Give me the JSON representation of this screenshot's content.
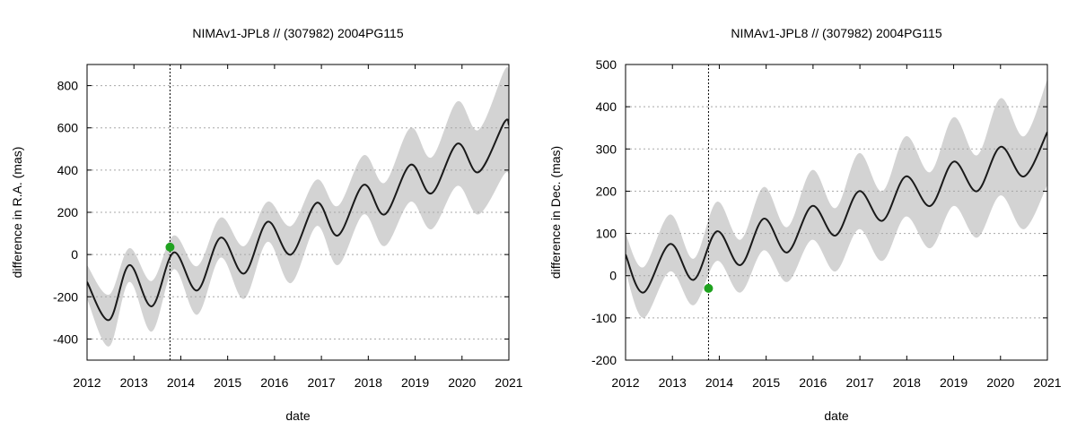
{
  "chart_data": [
    {
      "type": "line",
      "title": "NIMAv1-JPL8 // (307982) 2004PG115",
      "xlabel": "date",
      "ylabel": "difference in R.A. (mas)",
      "xlim": [
        2012,
        2021
      ],
      "ylim": [
        -500,
        900
      ],
      "xticks": [
        2012,
        2013,
        2014,
        2015,
        2016,
        2017,
        2018,
        2019,
        2020,
        2021
      ],
      "yticks": [
        -400,
        -200,
        0,
        200,
        400,
        600,
        800
      ],
      "grid": "horizontal-dotted",
      "vline_x": 2013.77,
      "series": [
        {
          "name": "difference",
          "style": "line",
          "color": "#1a1a1a",
          "x": [
            2012.0,
            2012.47,
            2012.9,
            2013.38,
            2013.85,
            2014.35,
            2014.85,
            2015.35,
            2015.85,
            2016.35,
            2016.9,
            2017.35,
            2017.9,
            2018.35,
            2018.9,
            2019.35,
            2019.9,
            2020.35,
            2020.9,
            2021.0
          ],
          "y": [
            -130,
            -310,
            -50,
            -245,
            10,
            -170,
            80,
            -90,
            155,
            0,
            245,
            90,
            330,
            190,
            425,
            290,
            525,
            390,
            625,
            615
          ]
        },
        {
          "name": "uncertainty upper",
          "style": "band-upper",
          "color": "#d3d3d3",
          "x": [
            2012.0,
            2012.47,
            2012.9,
            2013.38,
            2013.85,
            2014.35,
            2014.85,
            2015.35,
            2015.85,
            2016.35,
            2016.9,
            2017.35,
            2017.9,
            2018.35,
            2018.9,
            2019.35,
            2019.9,
            2020.35,
            2020.9,
            2021.0
          ],
          "y": [
            -50,
            -190,
            30,
            -125,
            90,
            -55,
            175,
            40,
            250,
            135,
            355,
            230,
            470,
            340,
            600,
            460,
            725,
            590,
            870,
            860
          ]
        },
        {
          "name": "uncertainty lower",
          "style": "band-lower",
          "color": "#d3d3d3",
          "x": [
            2012.0,
            2012.47,
            2012.9,
            2013.38,
            2013.85,
            2014.35,
            2014.85,
            2015.35,
            2015.85,
            2016.35,
            2016.9,
            2017.35,
            2017.9,
            2018.35,
            2018.9,
            2019.35,
            2019.9,
            2020.35,
            2020.9,
            2021.0
          ],
          "y": [
            -210,
            -435,
            -130,
            -365,
            -70,
            -285,
            -15,
            -210,
            60,
            -135,
            135,
            -50,
            190,
            40,
            250,
            120,
            325,
            190,
            380,
            370
          ]
        },
        {
          "name": "observation",
          "style": "point",
          "color": "#1fa21f",
          "x": [
            2013.77
          ],
          "y": [
            35
          ]
        }
      ]
    },
    {
      "type": "line",
      "title": "NIMAv1-JPL8 // (307982) 2004PG115",
      "xlabel": "date",
      "ylabel": "difference in Dec. (mas)",
      "xlim": [
        2012,
        2021
      ],
      "ylim": [
        -200,
        500
      ],
      "xticks": [
        2012,
        2013,
        2014,
        2015,
        2016,
        2017,
        2018,
        2019,
        2020,
        2021
      ],
      "yticks": [
        -200,
        -100,
        0,
        100,
        200,
        300,
        400,
        500
      ],
      "grid": "horizontal-dotted",
      "vline_x": 2013.77,
      "series": [
        {
          "name": "difference",
          "style": "line",
          "color": "#1a1a1a",
          "x": [
            2012.0,
            2012.38,
            2012.95,
            2013.45,
            2013.95,
            2014.45,
            2014.95,
            2015.45,
            2015.98,
            2016.48,
            2016.98,
            2017.48,
            2017.98,
            2018.5,
            2019.0,
            2019.5,
            2020.0,
            2020.5,
            2021.0
          ],
          "y": [
            50,
            -40,
            75,
            -10,
            105,
            25,
            135,
            55,
            165,
            95,
            200,
            130,
            235,
            165,
            270,
            200,
            305,
            235,
            340
          ]
        },
        {
          "name": "uncertainty upper",
          "style": "band-upper",
          "color": "#d3d3d3",
          "x": [
            2012.0,
            2012.38,
            2012.95,
            2013.45,
            2013.95,
            2014.45,
            2014.95,
            2015.45,
            2015.98,
            2016.48,
            2016.98,
            2017.48,
            2017.98,
            2018.5,
            2019.0,
            2019.5,
            2020.0,
            2020.5,
            2021.0
          ],
          "y": [
            100,
            20,
            145,
            40,
            175,
            85,
            210,
            115,
            250,
            160,
            290,
            200,
            330,
            245,
            375,
            285,
            420,
            330,
            465
          ]
        },
        {
          "name": "uncertainty lower",
          "style": "band-lower",
          "color": "#d3d3d3",
          "x": [
            2012.0,
            2012.38,
            2012.95,
            2013.45,
            2013.95,
            2014.45,
            2014.95,
            2015.45,
            2015.98,
            2016.48,
            2016.98,
            2017.48,
            2017.98,
            2018.5,
            2019.0,
            2019.5,
            2020.0,
            2020.5,
            2021.0
          ],
          "y": [
            10,
            -100,
            10,
            -70,
            35,
            -40,
            60,
            -15,
            85,
            10,
            110,
            35,
            140,
            65,
            165,
            90,
            190,
            110,
            215
          ]
        },
        {
          "name": "observation",
          "style": "point",
          "color": "#1fa21f",
          "x": [
            2013.77
          ],
          "y": [
            -30
          ]
        }
      ]
    }
  ]
}
